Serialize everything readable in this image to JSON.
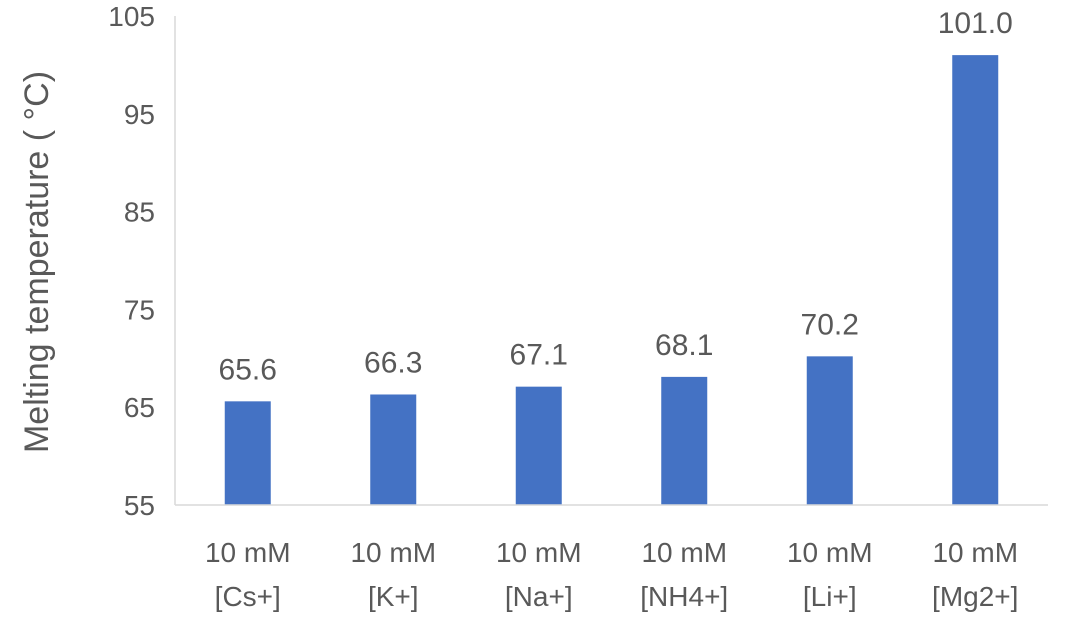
{
  "chart_data": {
    "type": "bar",
    "title": "",
    "xlabel": "",
    "ylabel": "Melting temperature ( °C)",
    "ylim": [
      55,
      105
    ],
    "yticks": [
      55,
      65,
      75,
      85,
      95,
      105
    ],
    "grid": false,
    "legend": "none",
    "categories": [
      [
        "10 mM",
        "[Cs+]"
      ],
      [
        "10 mM",
        "[K+]"
      ],
      [
        "10 mM",
        "[Na+]"
      ],
      [
        "10 mM",
        "[NH4+]"
      ],
      [
        "10 mM",
        "[Li+]"
      ],
      [
        "10 mM",
        "[Mg2+]"
      ]
    ],
    "values": [
      65.6,
      66.3,
      67.1,
      68.1,
      70.2,
      101.0
    ],
    "data_labels": [
      "65.6",
      "66.3",
      "67.1",
      "68.1",
      "70.2",
      "101.0"
    ],
    "colors": {
      "bar": "#4472C4",
      "axis": "#D9D9D9",
      "text": "#595959"
    }
  }
}
